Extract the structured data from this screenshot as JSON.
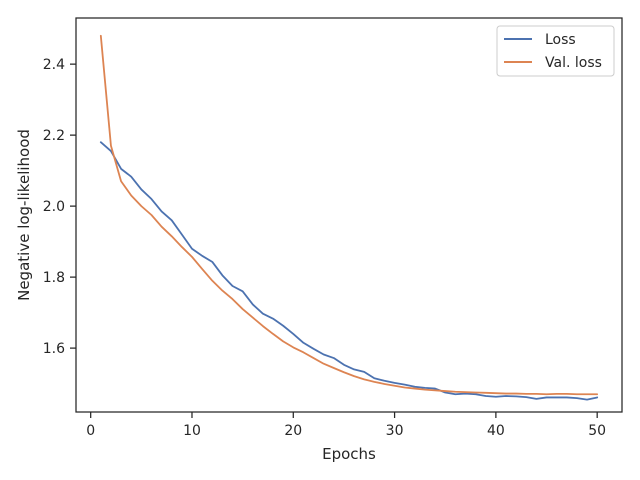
{
  "chart_data": {
    "type": "line",
    "title": "",
    "xlabel": "Epochs",
    "ylabel": "Negative log-likelihood",
    "xlim": [
      -1.45,
      52.45
    ],
    "ylim": [
      1.42,
      2.53
    ],
    "xticks": [
      0,
      10,
      20,
      30,
      40,
      50
    ],
    "yticks": [
      1.6,
      1.8,
      2.0,
      2.2,
      2.4
    ],
    "grid": false,
    "legend_position": "top-right",
    "x": [
      1,
      2,
      3,
      4,
      5,
      6,
      7,
      8,
      9,
      10,
      11,
      12,
      13,
      14,
      15,
      16,
      17,
      18,
      19,
      20,
      21,
      22,
      23,
      24,
      25,
      26,
      27,
      28,
      29,
      30,
      31,
      32,
      33,
      34,
      35,
      36,
      37,
      38,
      39,
      40,
      41,
      42,
      43,
      44,
      45,
      46,
      47,
      48,
      49,
      50
    ],
    "series": [
      {
        "name": "Loss",
        "color": "#4c72b0",
        "values": [
          2.18,
          2.155,
          2.105,
          2.083,
          2.047,
          2.02,
          1.985,
          1.96,
          1.92,
          1.88,
          1.86,
          1.843,
          1.805,
          1.775,
          1.76,
          1.723,
          1.697,
          1.683,
          1.663,
          1.64,
          1.615,
          1.598,
          1.582,
          1.572,
          1.553,
          1.54,
          1.533,
          1.515,
          1.508,
          1.502,
          1.497,
          1.491,
          1.488,
          1.486,
          1.475,
          1.47,
          1.472,
          1.47,
          1.465,
          1.463,
          1.465,
          1.464,
          1.462,
          1.457,
          1.461,
          1.461,
          1.461,
          1.459,
          1.455,
          1.461
        ]
      },
      {
        "name": "Val. loss",
        "color": "#dd8452",
        "values": [
          2.48,
          2.17,
          2.07,
          2.03,
          2.0,
          1.975,
          1.942,
          1.915,
          1.885,
          1.857,
          1.823,
          1.79,
          1.762,
          1.738,
          1.71,
          1.686,
          1.662,
          1.64,
          1.619,
          1.602,
          1.588,
          1.572,
          1.556,
          1.544,
          1.532,
          1.521,
          1.512,
          1.505,
          1.499,
          1.494,
          1.489,
          1.486,
          1.483,
          1.481,
          1.479,
          1.477,
          1.476,
          1.475,
          1.474,
          1.473,
          1.472,
          1.472,
          1.471,
          1.471,
          1.47,
          1.471,
          1.471,
          1.47,
          1.47,
          1.47
        ]
      }
    ]
  }
}
